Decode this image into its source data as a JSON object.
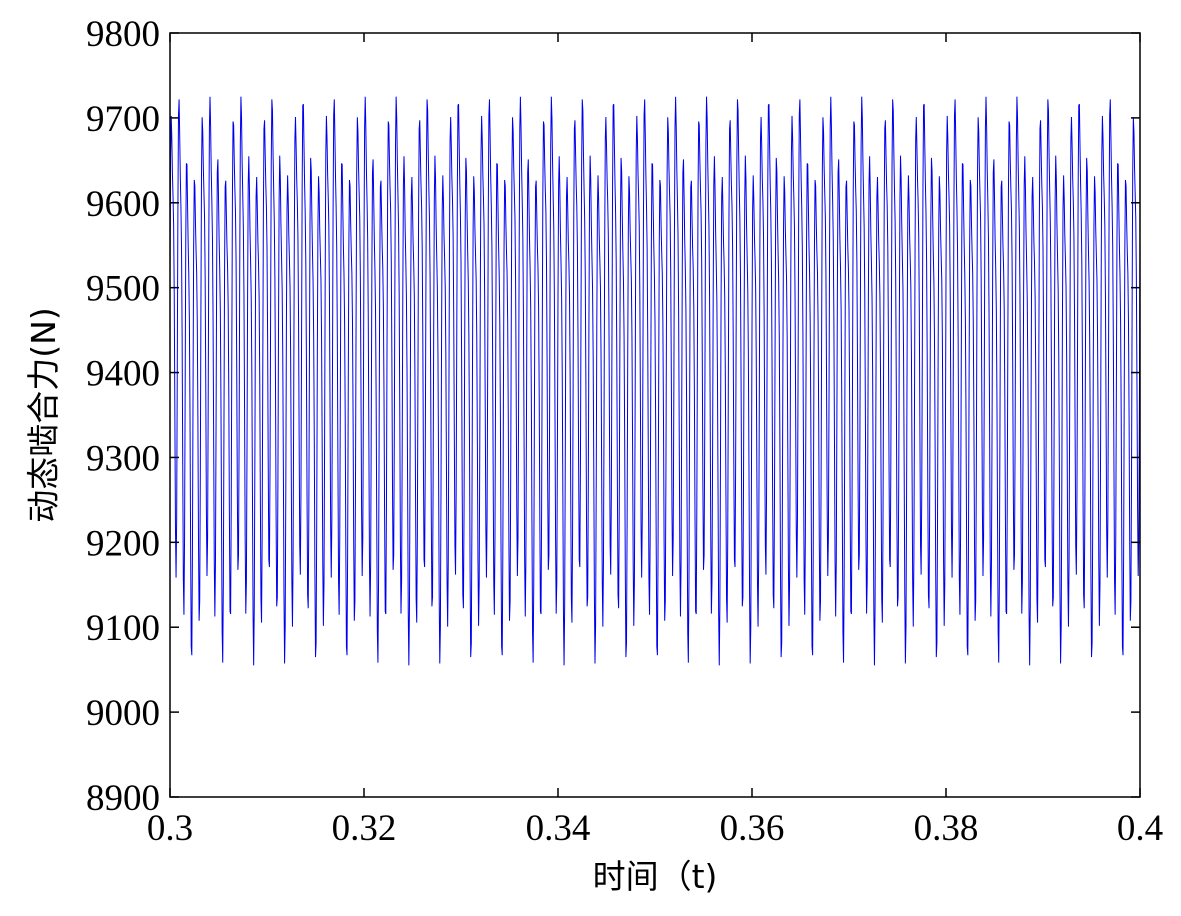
{
  "chart_data": {
    "type": "line",
    "title": "",
    "xlabel": "时间（t)",
    "ylabel": "动态啮合力(N)",
    "xlim": [
      0.3,
      0.4
    ],
    "ylim": [
      8900,
      9800
    ],
    "xticks": [
      0.3,
      0.32,
      0.34,
      0.36,
      0.38,
      0.4
    ],
    "xtick_labels": [
      "0.3",
      "0.32",
      "0.34",
      "0.36",
      "0.38",
      "0.4"
    ],
    "yticks": [
      8900,
      9000,
      9100,
      9200,
      9300,
      9400,
      9500,
      9600,
      9700,
      9800
    ],
    "ytick_labels": [
      "8900",
      "9000",
      "9100",
      "9200",
      "9300",
      "9400",
      "9500",
      "9600",
      "9700",
      "9800"
    ],
    "grid": false,
    "legend": "none",
    "series": [
      {
        "color": "#0000ee",
        "signal": {
          "mean": 9390,
          "components": [
            {
              "freq_hz": 1250,
              "amplitude": 225
            },
            {
              "freq_hz": 2500,
              "amplitude": 70
            },
            {
              "freq_hz": 312.5,
              "amplitude": 45
            }
          ],
          "observed_min": 9055,
          "observed_max": 9725,
          "t_start": 0.3,
          "t_end": 0.4
        }
      }
    ]
  }
}
